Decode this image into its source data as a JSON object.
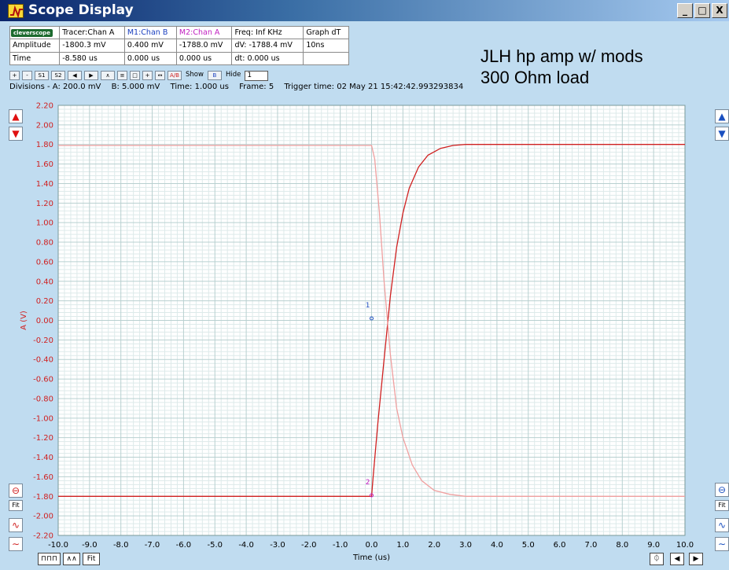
{
  "window": {
    "title": "Scope Display",
    "controls": {
      "minimize": "_",
      "maximize": "□",
      "close": "X"
    }
  },
  "info_table": {
    "logo": "cleverscope",
    "tracer": "Tracer:Chan A",
    "m1": "M1:Chan B",
    "m2": "M2:Chan A",
    "freq": "Freq: Inf KHz",
    "graph": "Graph dT",
    "amplitude_label": "Amplitude",
    "amplitude_tracer": "-1800.3 mV",
    "amplitude_m1": "0.400 mV",
    "amplitude_m2": "-1788.0 mV",
    "dv": "dV: -1788.4 mV",
    "graph_dt": "10ns",
    "time_label": "Time",
    "time_tracer": "-8.580 us",
    "time_m1": "0.000 us",
    "time_m2": "0.000 us",
    "dt": "dt:  0.000 us"
  },
  "note": {
    "line1": "JLH hp amp w/ mods",
    "line2": "300 Ohm load"
  },
  "toolbar": {
    "plus": "+",
    "minus": "-",
    "s1": "S1",
    "s2": "S2",
    "show_label": "Show",
    "hide_label": "Hide",
    "spin_value": "1",
    "ab_label": "A/B"
  },
  "status": {
    "divisions": "Divisions -  A: 200.0 mV",
    "b_div": "B: 5.000 mV",
    "time_div": "Time: 1.000 us",
    "frame": "Frame: 5",
    "trigger": "Trigger time: 02 May 21 15:42:42.993293834"
  },
  "side_controls": {
    "fit": "Fit"
  },
  "bottom_controls": {
    "fit": "Fit"
  },
  "colors": {
    "background": "#c0dcf0",
    "plot_bg": "#ffffff",
    "grid_major": "#b8d0d0",
    "grid_minor": "#ddeaea",
    "chan_a": "#d02020",
    "chan_b": "#f0a0a0",
    "axis_text": "#d02020"
  },
  "chart_data": {
    "type": "line",
    "xlabel": "Time (us)",
    "ylabel": "A (V)",
    "xlim": [
      -10.0,
      10.0
    ],
    "ylim": [
      -2.2,
      2.2
    ],
    "x_ticks": [
      "-10.0",
      "-9.0",
      "-8.0",
      "-7.0",
      "-6.0",
      "-5.0",
      "-4.0",
      "-3.0",
      "-2.0",
      "-1.0",
      "0.0",
      "1.0",
      "2.0",
      "3.0",
      "4.0",
      "5.0",
      "6.0",
      "7.0",
      "8.0",
      "9.0",
      "10.0"
    ],
    "y_ticks": [
      "2.20",
      "2.00",
      "1.80",
      "1.60",
      "1.40",
      "1.20",
      "1.00",
      "0.80",
      "0.60",
      "0.40",
      "0.20",
      "0.00",
      "-0.20",
      "-0.40",
      "-0.60",
      "-0.80",
      "-1.00",
      "-1.20",
      "-1.40",
      "-1.60",
      "-1.80",
      "-2.00",
      "-2.20"
    ],
    "grid": true,
    "series": [
      {
        "color": "#d02020",
        "x": [
          -10.0,
          0.0,
          0.05,
          0.2,
          0.4,
          0.6,
          0.8,
          1.0,
          1.2,
          1.5,
          1.8,
          2.2,
          2.6,
          3.0,
          4.0,
          10.0
        ],
        "y": [
          -1.8,
          -1.8,
          -1.6,
          -1.05,
          -0.4,
          0.25,
          0.75,
          1.1,
          1.35,
          1.57,
          1.69,
          1.76,
          1.79,
          1.8,
          1.8,
          1.8
        ]
      },
      {
        "color": "#f0a0a0",
        "x": [
          -10.0,
          0.0,
          0.1,
          0.25,
          0.4,
          0.6,
          0.8,
          1.0,
          1.3,
          1.6,
          2.0,
          2.5,
          3.0,
          4.0,
          10.0
        ],
        "y": [
          1.79,
          1.79,
          1.65,
          1.1,
          0.4,
          -0.35,
          -0.9,
          -1.2,
          -1.48,
          -1.64,
          -1.74,
          -1.78,
          -1.8,
          -1.8,
          -1.8
        ]
      }
    ],
    "markers": [
      {
        "label": "1",
        "x": 0.0,
        "y": 0.02,
        "color": "#2050c0"
      },
      {
        "label": "2",
        "x": 0.0,
        "y": -1.79,
        "color": "#c020c0"
      }
    ]
  }
}
